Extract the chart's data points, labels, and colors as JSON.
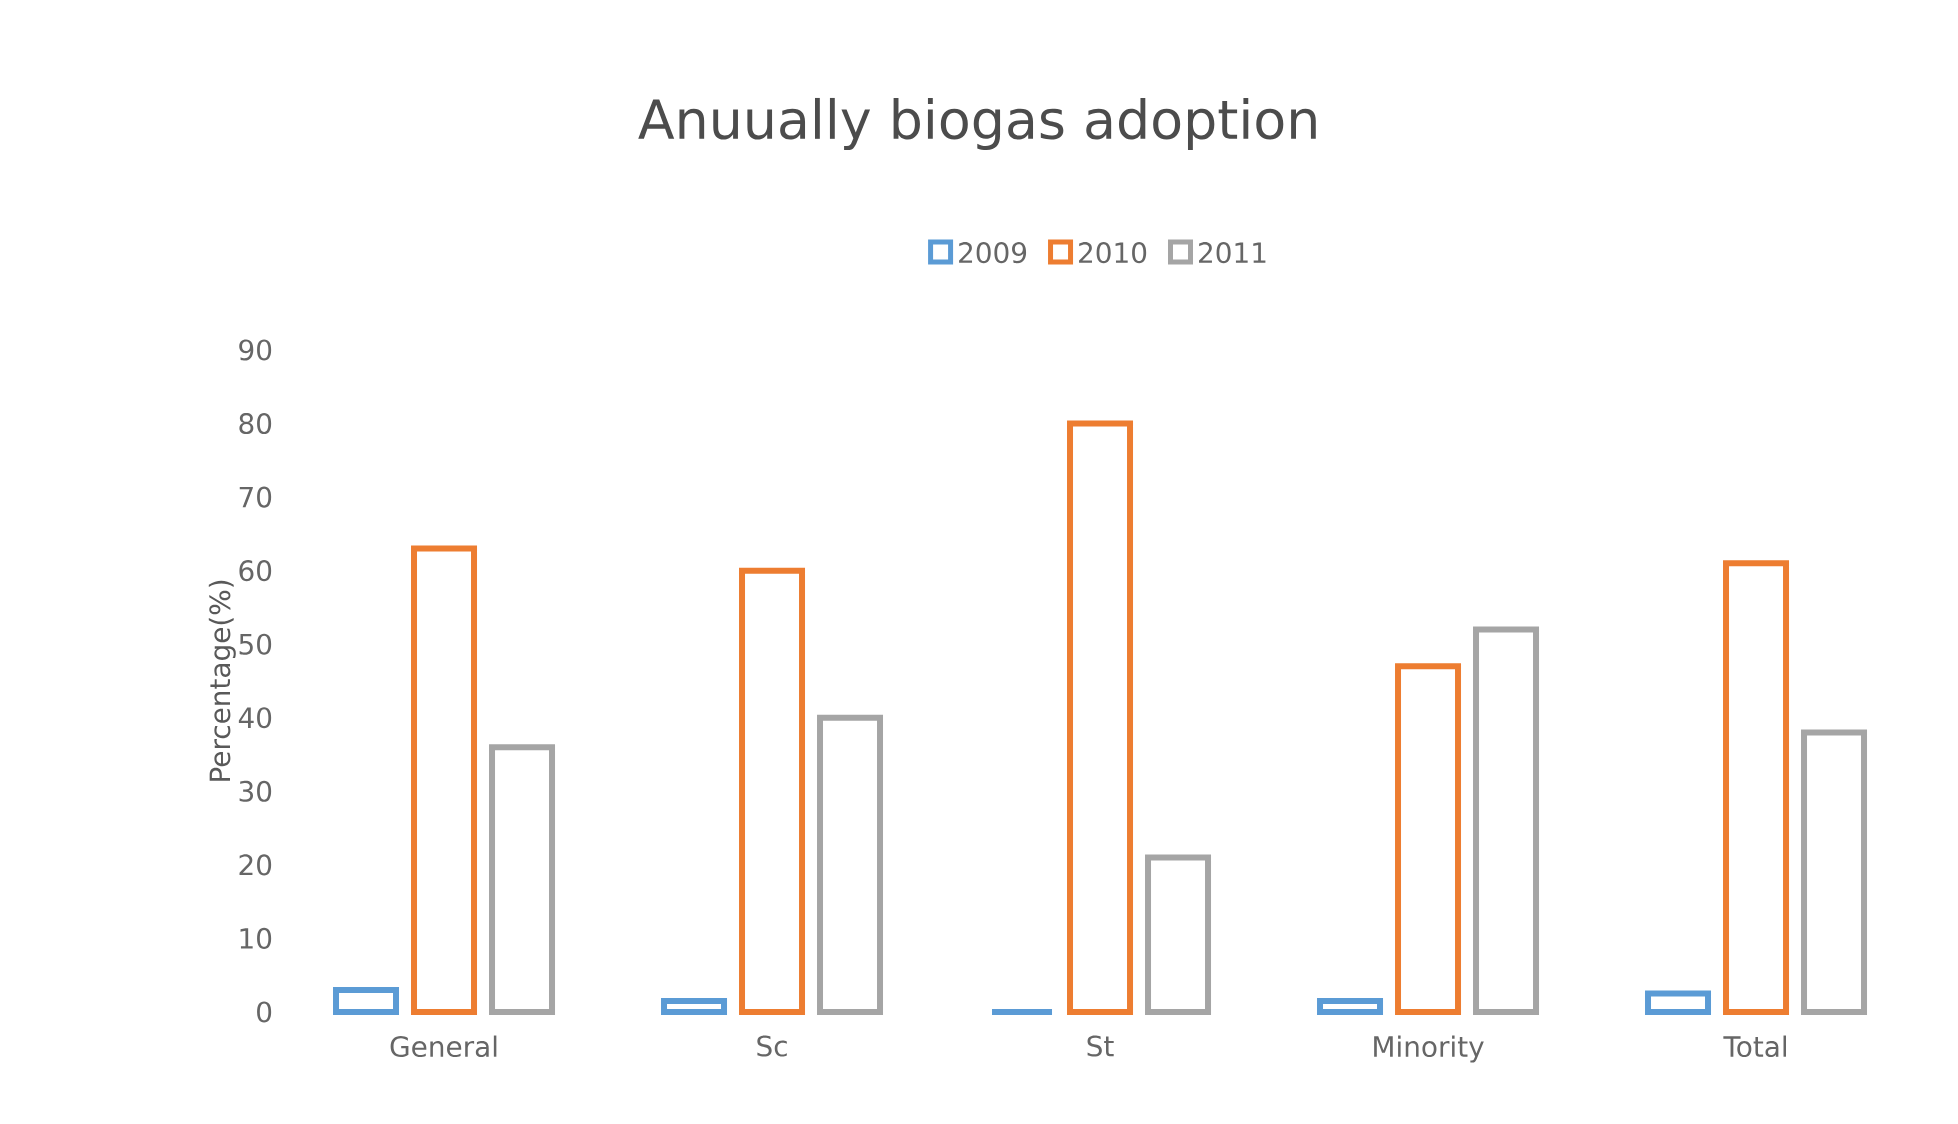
{
  "chart_data": {
    "type": "bar",
    "title": "Anuually biogas adoption",
    "ylabel": "Percentage(%)",
    "categories": [
      "General",
      "Sc",
      "St",
      "Minority",
      "Total"
    ],
    "series": [
      {
        "name": "2009",
        "color": "#5b9bd5",
        "values": [
          3,
          1.5,
          0,
          1.5,
          2.5
        ]
      },
      {
        "name": "2010",
        "color": "#ed7d31",
        "values": [
          63,
          60,
          80,
          47,
          61
        ]
      },
      {
        "name": "2011",
        "color": "#a5a5a5",
        "values": [
          36,
          40,
          21,
          52,
          38
        ]
      }
    ],
    "ylim": [
      0,
      90
    ],
    "yticks": [
      0,
      10,
      20,
      30,
      40,
      50,
      60,
      70,
      80,
      90
    ],
    "legend": "top",
    "grid": false
  }
}
